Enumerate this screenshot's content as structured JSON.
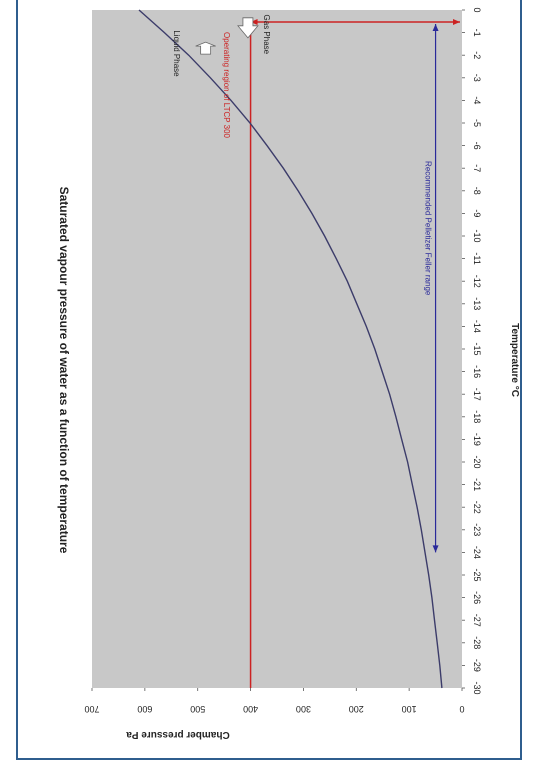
{
  "chart_data": {
    "type": "line",
    "title": "Saturated vapour pressure of water as a function of temperature",
    "xlabel": "Temperature °C",
    "ylabel": "Chamber pressure Pa",
    "x_tick_labels": [
      "0",
      "-1",
      "-2",
      "-3",
      "-4",
      "-5",
      "-6",
      "-7",
      "-8",
      "-9",
      "-10",
      "-11",
      "-12",
      "-13",
      "-14",
      "-15",
      "-16",
      "-17",
      "-18",
      "-19",
      "-20",
      "-21",
      "-22",
      "-23",
      "-24",
      "-25",
      "-26",
      "-27",
      "-28",
      "-29",
      "-30"
    ],
    "y_tick_labels": [
      "0",
      "100",
      "200",
      "300",
      "400",
      "500",
      "600",
      "700"
    ],
    "xlim": [
      0,
      -30
    ],
    "ylim": [
      0,
      700
    ],
    "orientation": "rotated 90° (temperature axis vertical, pressure axis horizontal)",
    "background_color": "#c8c8c8",
    "curve_color": "#3c3c6a",
    "series": [
      {
        "x": [
          0,
          -1,
          -2,
          -3,
          -4,
          -5,
          -6,
          -7,
          -8,
          -9,
          -10,
          -11,
          -12,
          -13,
          -14,
          -15,
          -16,
          -17,
          -18,
          -19,
          -20,
          -21,
          -22,
          -23,
          -24,
          -25,
          -26,
          -27,
          -28,
          -29,
          -30
        ],
        "y": [
          611,
          563,
          517,
          476,
          437,
          401,
          369,
          338,
          310,
          284,
          260,
          238,
          217,
          199,
          181,
          165,
          151,
          137,
          125,
          114,
          103,
          94,
          85,
          77,
          70,
          63,
          57,
          52,
          47,
          42,
          38
        ]
      }
    ],
    "annotations": [
      {
        "text": "Liquid Phase",
        "color": "#222222",
        "arrow": "up-arrow"
      },
      {
        "text": "Gas Phase",
        "color": "#222222",
        "arrow": "down-arrow"
      },
      {
        "text": "Operating region of LTCP 300",
        "color": "#cc2222",
        "type": "region-bracket",
        "pressure_value": 400,
        "temperature_range": [
          0,
          -1.2
        ]
      },
      {
        "text": "Recommended Pelletizer Feller range",
        "color": "#2a2a9a",
        "type": "range-arrow",
        "pressure_value": 50,
        "temperature_range": [
          0,
          -24
        ]
      }
    ],
    "reference_line": {
      "pressure_value": 400,
      "color": "#cc2222",
      "temperature_range": [
        0,
        -30
      ]
    }
  }
}
